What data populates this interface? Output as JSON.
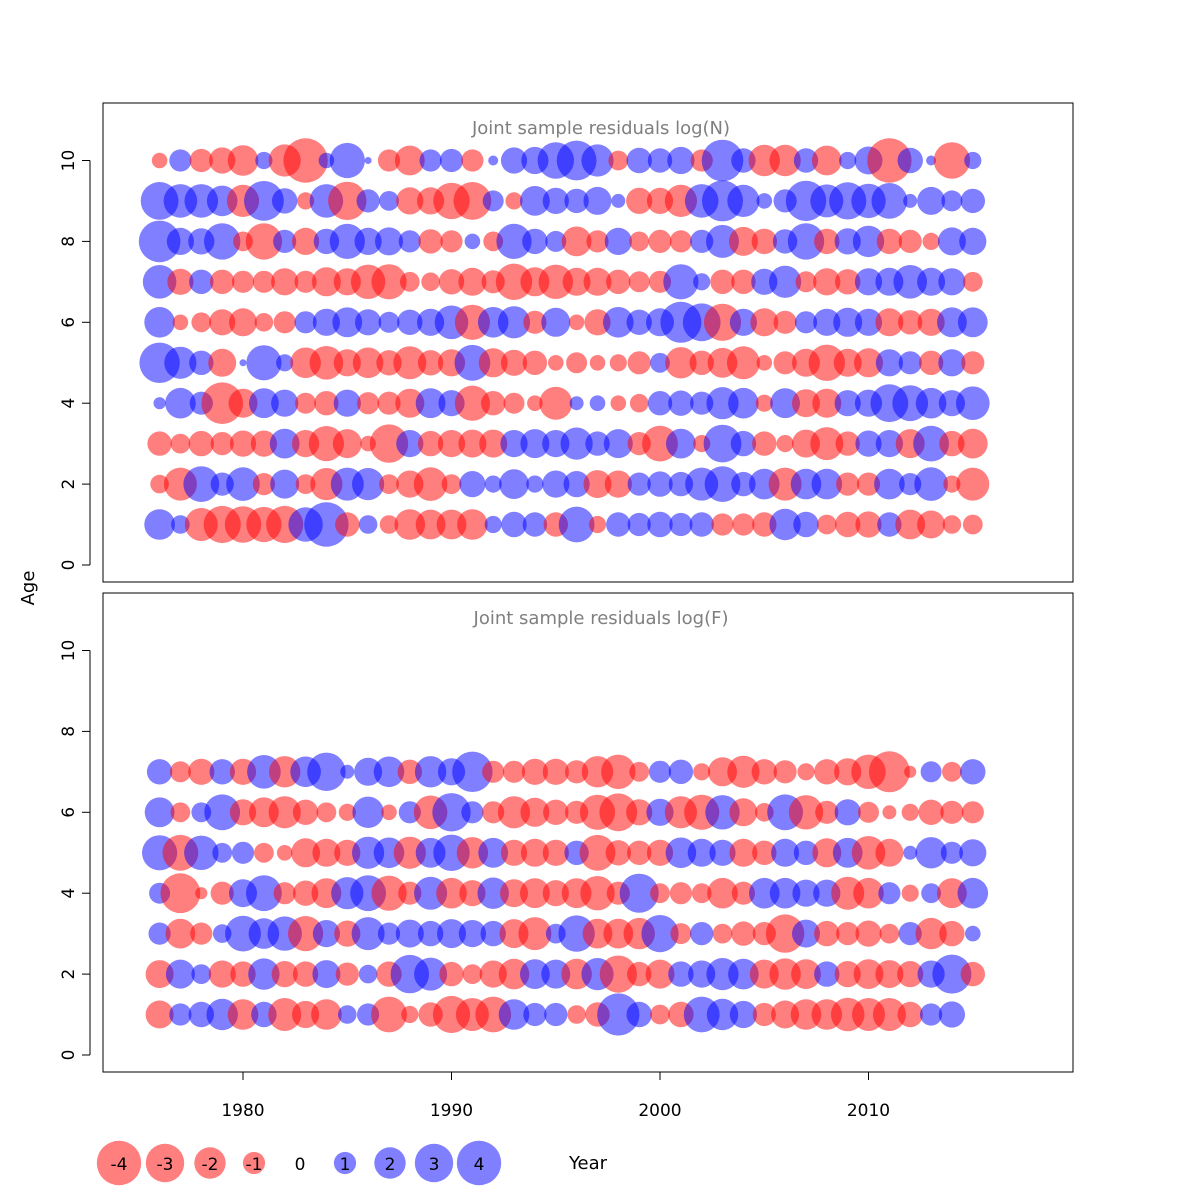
{
  "figure": {
    "ylabel_shared": "Age",
    "xlabel": "Year",
    "x_ticks": [
      1980,
      1990,
      2000,
      2010
    ],
    "colors": {
      "negative": "#ff0000",
      "positive": "#0000ff",
      "frame": "#000000",
      "title": "#7f7f7f"
    },
    "legend": {
      "values": [
        -4,
        -3,
        -2,
        -1,
        0,
        1,
        2,
        3,
        4
      ],
      "labels": [
        "-4",
        "-3",
        "-2",
        "-1",
        "0",
        "1",
        "2",
        "3",
        "4"
      ]
    }
  },
  "chart_data": [
    {
      "type": "scatter",
      "title": "Joint sample residuals log(N)",
      "xlabel": "",
      "ylabel": "Age",
      "x_range": [
        1976,
        2017
      ],
      "ylim": [
        0,
        11
      ],
      "y_ticks": [
        0,
        2,
        4,
        6,
        8,
        10
      ],
      "ages": [
        1,
        2,
        3,
        4,
        5,
        6,
        7,
        8,
        9,
        10
      ],
      "residuals": {
        "10": [
          -0.5,
          1,
          -1.1,
          -1.4,
          -1.9,
          0.6,
          -2.1,
          -4,
          0.5,
          2.5,
          0.1,
          -1,
          -1.8,
          1,
          1.1,
          -1,
          0.2,
          1.4,
          1.5,
          2.7,
          3.2,
          2.1,
          -0.8,
          1.3,
          1.2,
          1.5,
          -1,
          3.5,
          1.2,
          -2,
          -2,
          1.2,
          -1.8,
          0.6,
          1.6,
          -4,
          1.3,
          0.2,
          -2.7,
          0.6
        ],
        "9": [
          2.9,
          2.3,
          2.3,
          1.9,
          -2.1,
          3.2,
          1.3,
          -0.6,
          2.3,
          -3,
          1.1,
          0.8,
          -1.5,
          -1.5,
          -2.7,
          -2.9,
          0.9,
          -0.6,
          1.8,
          1.4,
          1.2,
          1.6,
          0.4,
          -1.4,
          -1.4,
          -2.1,
          2.3,
          3.4,
          2.1,
          0.5,
          1.1,
          3.3,
          2.2,
          2.8,
          2.4,
          2.6,
          0.4,
          1.6,
          0.9,
          1.2
        ],
        "8": [
          3.5,
          1.5,
          1.4,
          2.7,
          -0.8,
          -2.7,
          1.1,
          -1.5,
          1.3,
          2.5,
          1.5,
          1.6,
          1,
          -1.2,
          -1,
          0.5,
          -0.8,
          2.5,
          1.3,
          0.9,
          -1.8,
          -1,
          1.5,
          -0.8,
          -1.1,
          -1,
          1.1,
          2.2,
          -1.7,
          -1.3,
          1.2,
          2.7,
          -1.3,
          1.4,
          2,
          -1.3,
          -1.1,
          -0.6,
          1.6,
          1.5
        ],
        "7": [
          2.3,
          -1.4,
          1.2,
          -1.2,
          -1,
          -1,
          -1.5,
          -1,
          -1.7,
          -1.5,
          -2.4,
          -2.5,
          -0.8,
          -0.7,
          -1.3,
          -1.6,
          -1.1,
          -2.7,
          -1.7,
          -2.4,
          -1.6,
          -1.6,
          -1.2,
          -0.9,
          -1,
          2.5,
          0.6,
          -1.2,
          -1.2,
          1.4,
          2.1,
          -0.9,
          -1.5,
          -1.3,
          1.5,
          1.6,
          2.3,
          1.6,
          1.5,
          -0.8
        ],
        "6": [
          1.9,
          -0.5,
          -0.8,
          -1.4,
          -1.6,
          -0.7,
          -1,
          1,
          1.5,
          1.8,
          1.4,
          0.9,
          1.3,
          1.5,
          2.3,
          -2.5,
          1.9,
          2.1,
          -1.1,
          1.7,
          -0.5,
          -1.4,
          1.9,
          1.3,
          1.6,
          3.4,
          2.9,
          -2.8,
          1.5,
          -1.6,
          -1.1,
          1,
          1.5,
          1.7,
          1.5,
          -1.6,
          -1.2,
          -1.5,
          1.8,
          1.8
        ],
        "5": [
          3.3,
          2.1,
          1.2,
          -1.6,
          0.1,
          2.5,
          0.6,
          -1.9,
          -2.3,
          -1.5,
          -1.9,
          -1.3,
          -2.2,
          -1.3,
          -1.5,
          2.6,
          -1.7,
          -1.4,
          -1.2,
          -0.5,
          -0.9,
          -0.5,
          -0.6,
          -1.1,
          0.8,
          -2,
          -1.2,
          -1.8,
          -2.2,
          -0.5,
          -1.1,
          -1.6,
          -2.7,
          -1.6,
          -1.7,
          1.5,
          1.1,
          -1.2,
          1.5,
          -1.1
        ],
        "4": [
          0.3,
          1.9,
          1.1,
          -3.5,
          -1.7,
          1.8,
          1.5,
          -0.9,
          -1.2,
          1.5,
          -1,
          -1.1,
          -1.7,
          1.8,
          1.4,
          -2.5,
          -1.2,
          -0.9,
          -0.5,
          -2.2,
          0.4,
          0.5,
          -0.5,
          -0.7,
          1.2,
          1.3,
          1.1,
          2.1,
          1.9,
          -0.6,
          1.8,
          -1.6,
          -1.7,
          1.4,
          1.5,
          2.9,
          2.6,
          1.9,
          1.4,
          2.3
        ],
        "3": [
          -1.2,
          -0.8,
          -1.3,
          -1.1,
          -1.4,
          -1.4,
          1.8,
          -1.5,
          -2.5,
          -1.7,
          -0.5,
          -3,
          1.5,
          -1.3,
          -1.5,
          -1.6,
          -1.6,
          1.5,
          1.7,
          1.5,
          2.1,
          1.2,
          1.7,
          -1.1,
          -2.6,
          1.8,
          -0.6,
          2.9,
          1.3,
          -1.2,
          -0.6,
          -1.6,
          -2.2,
          -1.2,
          1.4,
          1.5,
          -1.7,
          2.6,
          -1.3,
          -1.8
        ],
        "2": [
          -0.7,
          -2.2,
          2.6,
          1.1,
          2.3,
          -1,
          1.7,
          -0.8,
          -2.1,
          2.2,
          2.1,
          -0.8,
          -1.5,
          -2.3,
          -0.8,
          1.4,
          0.6,
          1.8,
          0.6,
          1.5,
          1.4,
          -1.6,
          -1.5,
          1.1,
          1.3,
          1.2,
          2.2,
          2.6,
          1.2,
          1.9,
          -2.2,
          1.9,
          1.9,
          -1.1,
          -1.1,
          1.9,
          1,
          2.3,
          -0.6,
          -2.2
        ],
        "1": [
          1.9,
          0.7,
          -2.2,
          -2.8,
          -2.7,
          -2.5,
          -2.8,
          2.4,
          4,
          -1.2,
          0.7,
          -0.7,
          -1.9,
          -1.8,
          -1.8,
          -1.9,
          0.6,
          1.3,
          1.2,
          -1.2,
          2.6,
          -0.6,
          1.2,
          1.1,
          1.3,
          1.1,
          1.2,
          -1,
          -1,
          -1.2,
          2,
          1.3,
          -0.8,
          -1.3,
          -1.4,
          1.2,
          -1.8,
          -1.6,
          -0.7,
          -0.8
        ]
      }
    },
    {
      "type": "scatter",
      "title": "Joint sample residuals log(F)",
      "xlabel": "Year",
      "ylabel": "Age",
      "x_range": [
        1976,
        2017
      ],
      "ylim": [
        0,
        11
      ],
      "y_ticks": [
        0,
        2,
        4,
        6,
        8,
        10
      ],
      "ages": [
        1,
        2,
        3,
        4,
        5,
        6,
        7
      ],
      "residuals": {
        "7": [
          1.3,
          -0.9,
          -1.4,
          1.3,
          -1.4,
          2.3,
          -2,
          1.9,
          3,
          0.4,
          1.6,
          1.9,
          -1.2,
          2,
          1.5,
          3.3,
          -1,
          -1,
          -1.4,
          -1.4,
          -1.1,
          -2,
          -2.4,
          -0.8,
          1,
          1.2,
          -0.6,
          -1.7,
          -2.1,
          -1.3,
          -1.1,
          -0.6,
          -1.3,
          -1.5,
          -2.4,
          -3.4,
          -0.3,
          0.9,
          -0.8,
          1.3
        ],
        "6": [
          1.8,
          -0.8,
          0.8,
          2.6,
          -1.4,
          -1.8,
          -2.1,
          -1.3,
          -0.8,
          -0.6,
          2,
          -0.5,
          1,
          -2.3,
          3,
          1,
          -1,
          -2.1,
          -1.7,
          -1.3,
          -1.1,
          -2.5,
          -2.9,
          -1.4,
          1.5,
          -2.1,
          -2.5,
          2.4,
          -1.6,
          -0.7,
          2.6,
          -2.4,
          -1.1,
          1.4,
          -0.9,
          -0.4,
          -0.6,
          -1.3,
          -1.1,
          -1
        ],
        "5": [
          2.5,
          -2.6,
          2.4,
          0.8,
          1,
          -0.8,
          -0.5,
          -1.7,
          -1.6,
          -1.4,
          2.1,
          1.9,
          -2.1,
          1.8,
          2.7,
          -2,
          1.8,
          -1.4,
          -1.6,
          -1.4,
          1.2,
          -2.6,
          -1.3,
          -1.2,
          -1.4,
          1.9,
          1.6,
          1.4,
          -1.6,
          -1.2,
          1.6,
          1.2,
          -1.7,
          1.8,
          -2.3,
          -1.6,
          0.4,
          2,
          1,
          1.5
        ],
        "4": [
          0.9,
          -3.2,
          -0.3,
          -1.1,
          1.6,
          2.6,
          -1,
          -1.3,
          -1.8,
          2.1,
          2.6,
          -2.5,
          -1.1,
          2.2,
          -1.9,
          -1.4,
          2,
          -1.6,
          -1.8,
          -1.4,
          -1.8,
          -2.4,
          -1.1,
          3.1,
          -0.8,
          -1,
          -0.8,
          -1.9,
          -1.1,
          1.9,
          1.9,
          1.5,
          1.5,
          -2.2,
          -1.9,
          1,
          -0.6,
          0.8,
          -1.8,
          1.9
        ],
        "3": [
          1,
          -1.8,
          -1,
          0.7,
          2.6,
          1.9,
          2.4,
          -2.5,
          1.5,
          -1.4,
          2.2,
          1,
          1.6,
          1.3,
          1.7,
          1.5,
          1.3,
          -1.7,
          -2.2,
          0.8,
          2.7,
          -1.8,
          -1.8,
          -2,
          2.8,
          -0.9,
          1.1,
          -0.8,
          -1.2,
          -1.1,
          -3,
          1.6,
          -1.3,
          -1.1,
          -1.4,
          -0.8,
          1.1,
          -2,
          -1.3,
          0.5
        ],
        "2": [
          -1.6,
          1.7,
          0.8,
          -1.5,
          -1.3,
          2,
          -1.4,
          -1.3,
          1.6,
          -1.1,
          0.7,
          -1.3,
          3,
          2.2,
          -1.2,
          -0.8,
          -1.5,
          -1.9,
          1.8,
          1.7,
          -1.9,
          2.1,
          -2.8,
          -1.2,
          -1.7,
          1.3,
          1.5,
          2.1,
          1.9,
          -1.7,
          -2,
          -1.8,
          1.3,
          -1.4,
          -1.8,
          -1.6,
          -1.4,
          1.5,
          3.1,
          -1.2
        ],
        "1": [
          -1.6,
          1,
          1.3,
          2,
          -1.9,
          1.3,
          -2.2,
          -1.5,
          -1.9,
          0.7,
          1,
          -2.6,
          -0.6,
          -1.2,
          -2.8,
          -2.2,
          -2.6,
          1.9,
          1.1,
          1.1,
          -0.7,
          -1.2,
          3.6,
          1.3,
          -0.8,
          -1.3,
          2.6,
          2,
          1.5,
          -1.1,
          -1.6,
          -1.9,
          -1.9,
          -2.3,
          -2.2,
          -2.2,
          -1.3,
          1,
          1.4
        ]
      }
    }
  ]
}
